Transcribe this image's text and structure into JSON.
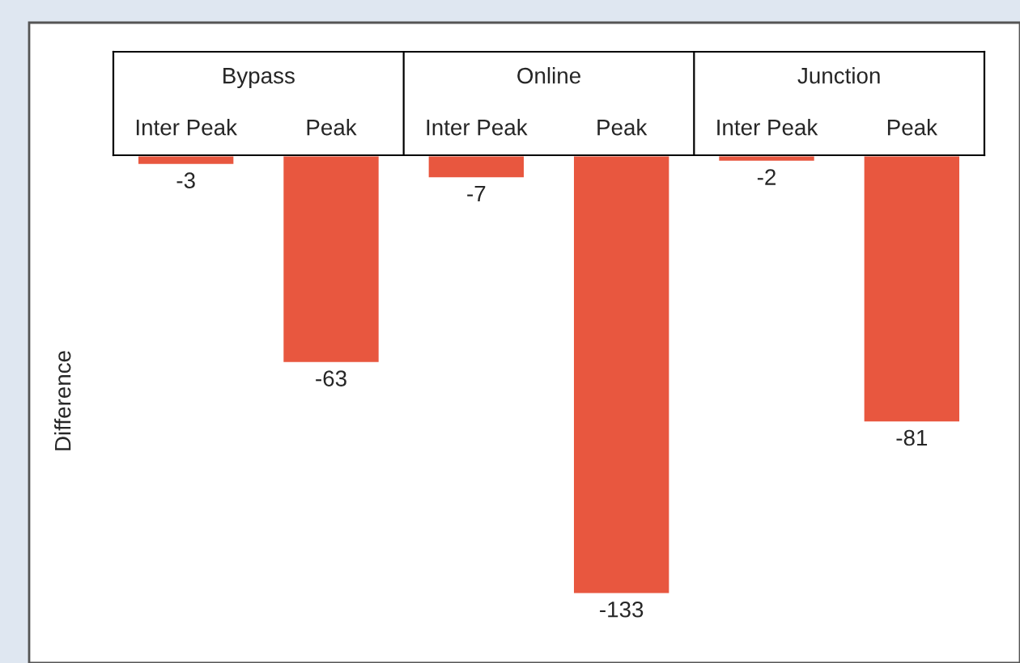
{
  "chart_data": {
    "type": "bar",
    "ylabel": "Difference",
    "categories": [
      "Inter Peak",
      "Peak",
      "Inter Peak",
      "Peak",
      "Inter Peak",
      "Peak"
    ],
    "values": [
      -3,
      -63,
      -7,
      -133,
      -2,
      -81
    ],
    "color": "#e8573f",
    "data_labels": true,
    "legend": false,
    "annotations": [
      "Bypass",
      "Online",
      "Junction"
    ]
  }
}
